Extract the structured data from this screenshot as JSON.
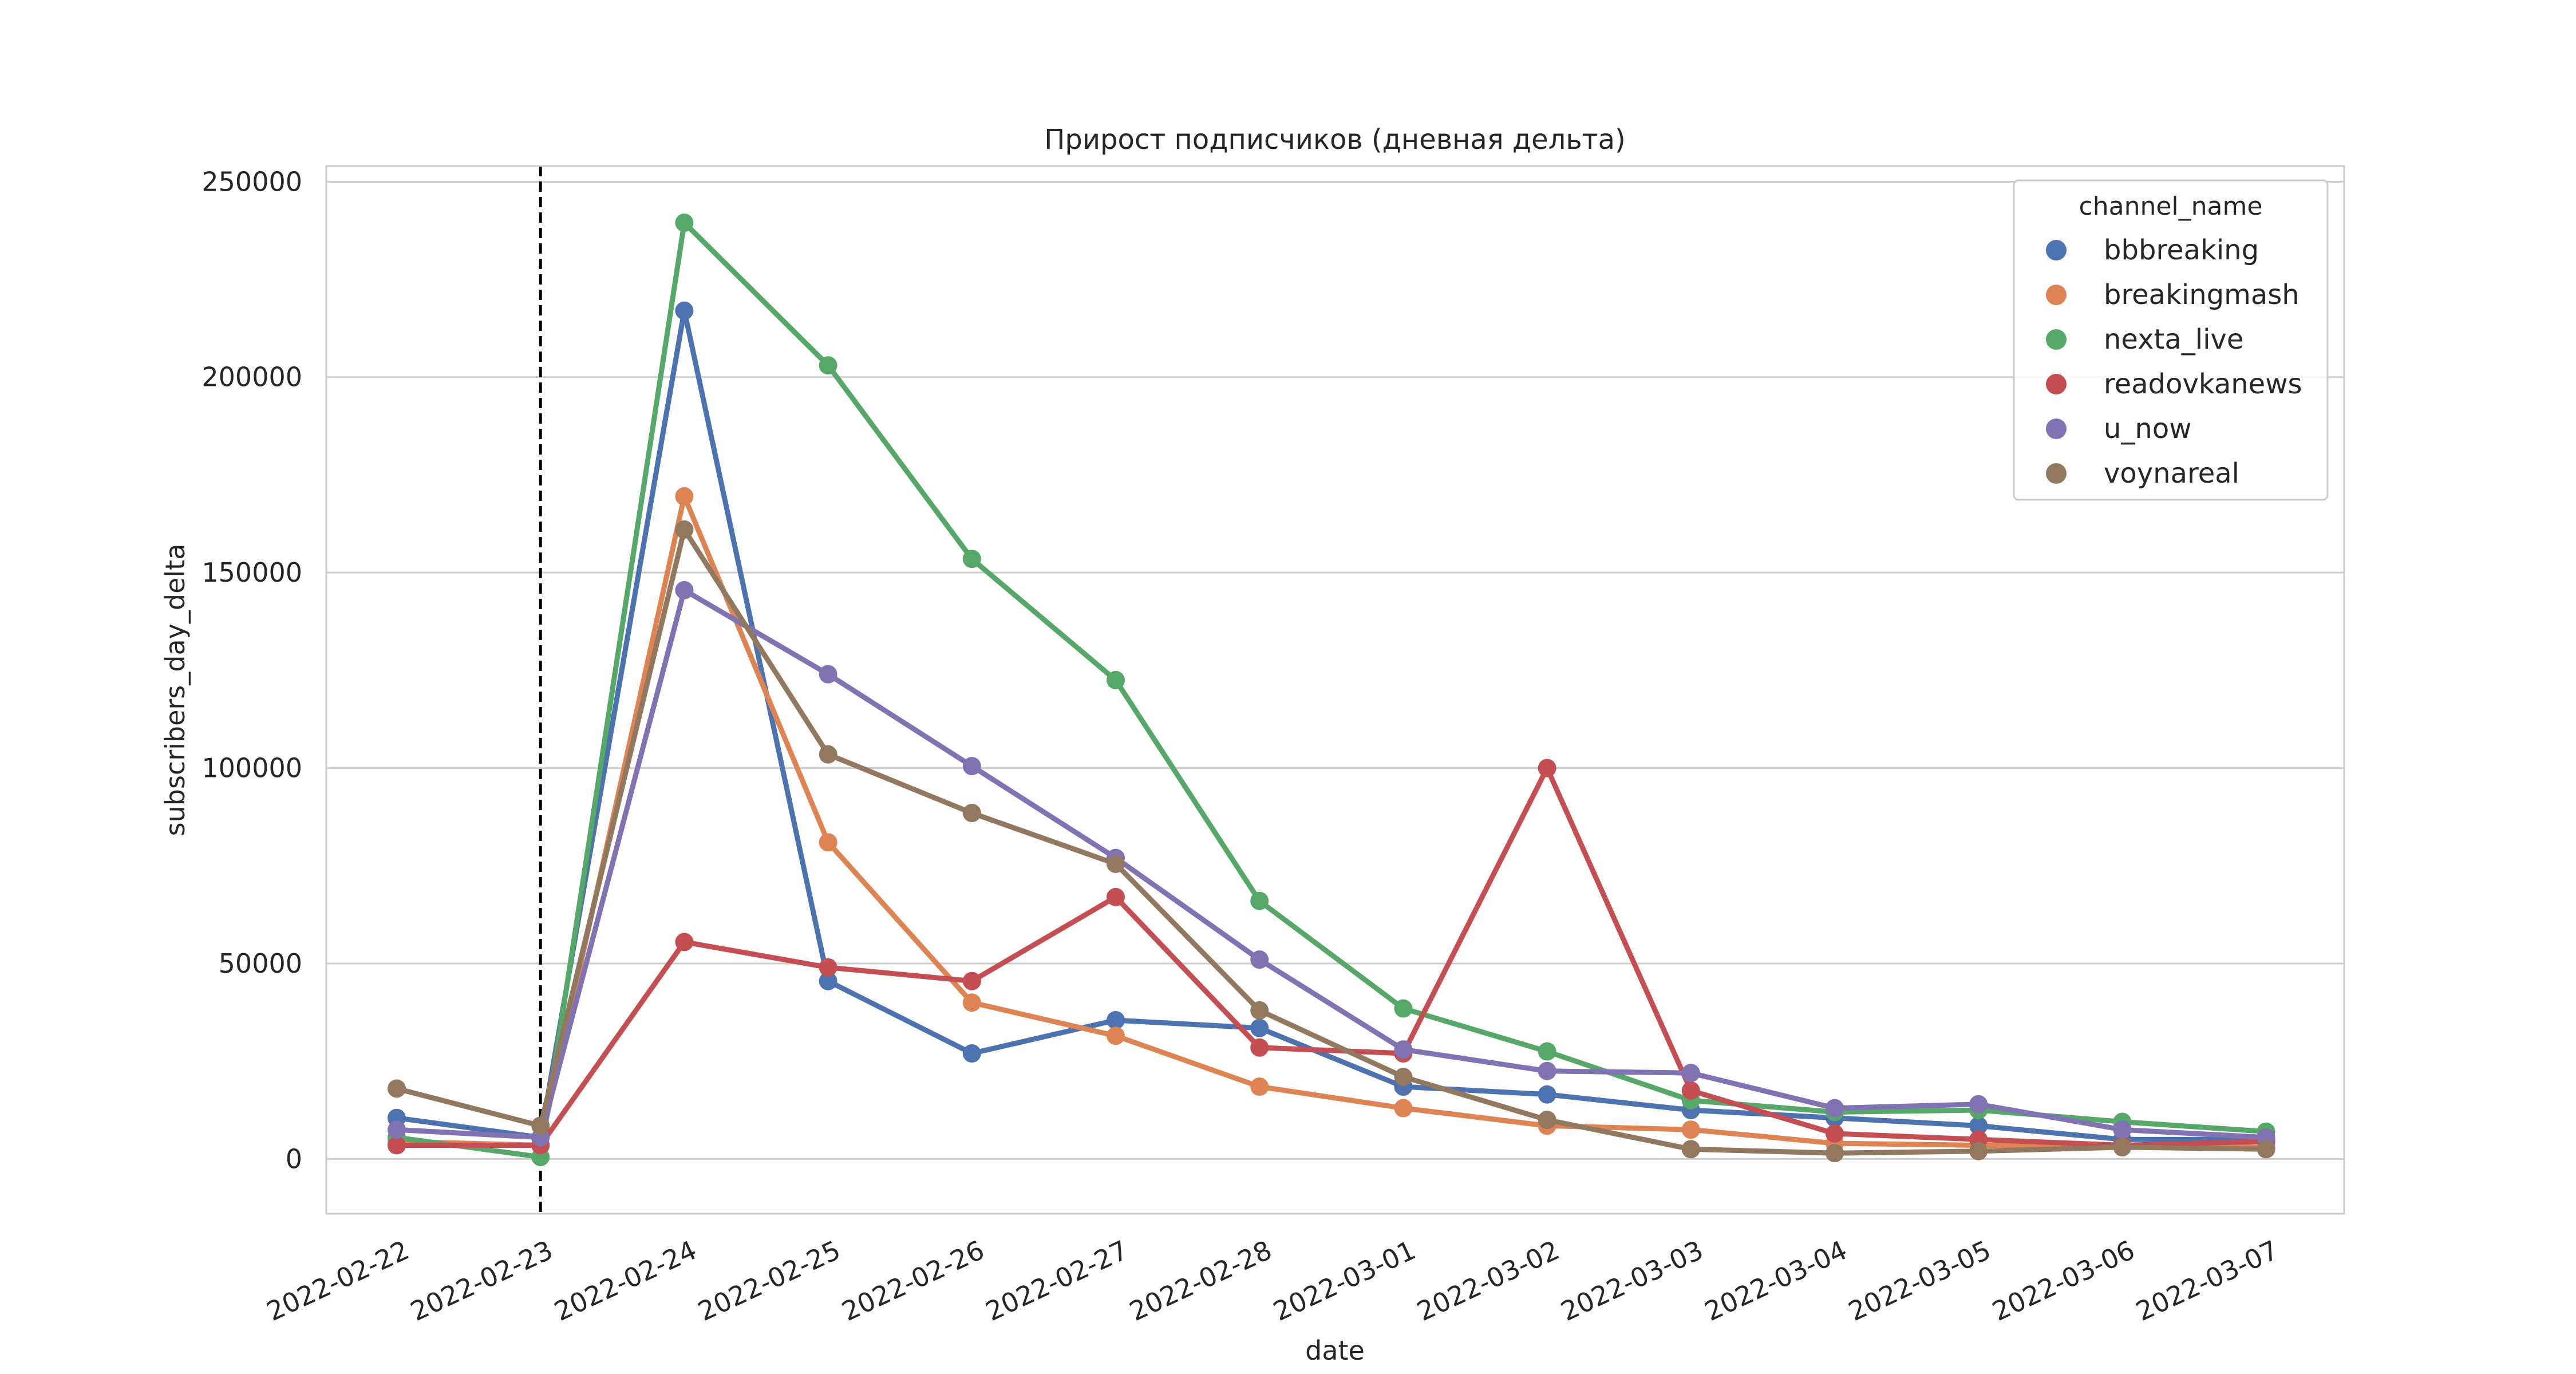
{
  "chart_data": {
    "type": "line",
    "title": "Прирост подписчиков (дневная дельта)",
    "xlabel": "date",
    "ylabel": "subscribers_day_delta",
    "categories": [
      "2022-02-22",
      "2022-02-23",
      "2022-02-24",
      "2022-02-25",
      "2022-02-26",
      "2022-02-27",
      "2022-02-28",
      "2022-03-01",
      "2022-03-02",
      "2022-03-03",
      "2022-03-04",
      "2022-03-05",
      "2022-03-06",
      "2022-03-07"
    ],
    "yticks": [
      0,
      50000,
      100000,
      150000,
      200000,
      250000
    ],
    "ylim": [
      -14000,
      254000
    ],
    "grid": true,
    "legend_title": "channel_name",
    "legend_position": "top-right",
    "vline": {
      "at_category": "2022-02-23",
      "style": "dashed",
      "color": "#000000"
    },
    "series": [
      {
        "name": "bbbreaking",
        "color": "#4c72b0",
        "values": [
          10500,
          5500,
          217000,
          45500,
          27000,
          35500,
          33500,
          18500,
          16500,
          12500,
          10500,
          8500,
          5000,
          5000
        ]
      },
      {
        "name": "breakingmash",
        "color": "#dd8452",
        "values": [
          4500,
          3500,
          169500,
          81000,
          40000,
          31500,
          18500,
          13000,
          8500,
          7500,
          4000,
          3500,
          3500,
          3000
        ]
      },
      {
        "name": "nexta_live",
        "color": "#55a868",
        "values": [
          5500,
          500,
          239500,
          203000,
          153500,
          122500,
          66000,
          38500,
          27500,
          15000,
          12000,
          12500,
          9500,
          7000
        ]
      },
      {
        "name": "readovkanews",
        "color": "#c44e52",
        "values": [
          3500,
          3500,
          55500,
          49000,
          45500,
          67000,
          28500,
          27000,
          100000,
          17500,
          6500,
          5000,
          3500,
          4500
        ]
      },
      {
        "name": "u_now",
        "color": "#8172b3",
        "values": [
          7500,
          5500,
          145500,
          124000,
          100500,
          77000,
          51000,
          28000,
          22500,
          22000,
          13000,
          14000,
          7500,
          5500
        ]
      },
      {
        "name": "voynareal",
        "color": "#937860",
        "values": [
          18000,
          8500,
          161000,
          103500,
          88500,
          75500,
          38000,
          21000,
          10000,
          2500,
          1500,
          2000,
          3000,
          2500
        ]
      }
    ]
  }
}
